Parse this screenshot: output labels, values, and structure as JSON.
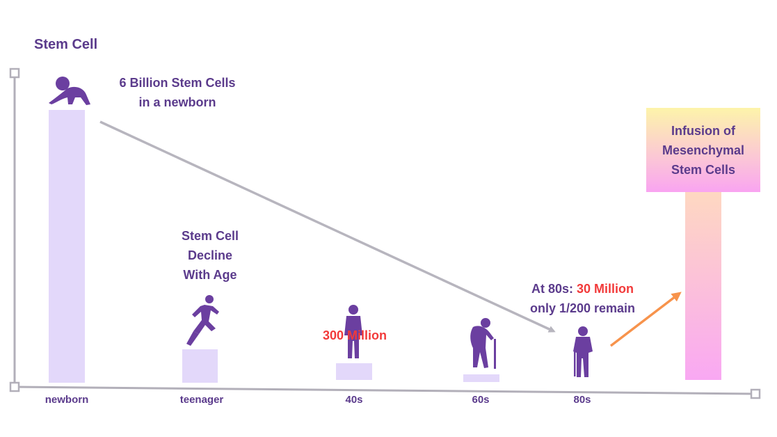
{
  "chart_data": {
    "type": "bar",
    "title": "Stem Cell",
    "categories": [
      "newborn",
      "teenager",
      "40s",
      "60s",
      "80s"
    ],
    "values": [
      6000,
      null,
      300,
      null,
      30
    ],
    "value_unit": "Million stem cells",
    "infusion_label": "Infusion of Mesenchymal Stem Cells",
    "annotations": {
      "newborn_line1": "6 Billion Stem Cells",
      "newborn_line2": "in a newborn",
      "decline_line1": "Stem Cell",
      "decline_line2": "Decline",
      "decline_line3": "With Age",
      "forties_value": "300 Million",
      "eighty_prefix": "At 80s: ",
      "eighty_value": "30 Million",
      "eighty_line2": "only 1/200 remain"
    },
    "infusion": {
      "line1": "Infusion of",
      "line2": "Mesenchymal",
      "line3": "Stem Cells"
    }
  },
  "colors": {
    "bar": "#e3d8fa",
    "axis": "#b2afb9",
    "trend": "#b7b5be",
    "text": "#5b3b8c",
    "highlight": "#f23a3a",
    "silhouette": "#6b3fa0",
    "orange_arrow": "#f7934c"
  }
}
